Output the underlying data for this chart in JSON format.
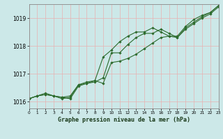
{
  "title": "Graphe pression niveau de la mer (hPa)",
  "bg_color": "#cce8e8",
  "grid_color": "#aad0d0",
  "line_color": "#2d6b2d",
  "xmin": 0,
  "xmax": 23,
  "ymin": 1015.75,
  "ymax": 1019.5,
  "yticks": [
    1016,
    1017,
    1018,
    1019
  ],
  "xticks": [
    0,
    1,
    2,
    3,
    4,
    5,
    6,
    7,
    8,
    9,
    10,
    11,
    12,
    13,
    14,
    15,
    16,
    17,
    18,
    19,
    20,
    21,
    22,
    23
  ],
  "series": [
    [
      1016.1,
      1016.2,
      1016.25,
      1016.2,
      1016.15,
      1016.1,
      1016.55,
      1016.65,
      1016.7,
      1016.85,
      1017.75,
      1017.75,
      1018.05,
      1018.3,
      1018.45,
      1018.45,
      1018.6,
      1018.45,
      1018.3,
      1018.6,
      1018.8,
      1019.0,
      1019.15,
      1019.4
    ],
    [
      1016.1,
      1016.2,
      1016.25,
      1016.2,
      1016.15,
      1016.2,
      1016.6,
      1016.7,
      1016.75,
      1017.6,
      1017.85,
      1018.15,
      1018.35,
      1018.5,
      1018.5,
      1018.65,
      1018.5,
      1018.35,
      1018.3,
      1018.65,
      1018.85,
      1019.05,
      1019.2,
      1019.45
    ],
    [
      1016.1,
      1016.2,
      1016.3,
      1016.2,
      1016.1,
      1016.15,
      1016.6,
      1016.65,
      1016.75,
      1016.65,
      1017.4,
      1017.45,
      1017.55,
      1017.7,
      1017.9,
      1018.1,
      1018.3,
      1018.35,
      1018.35,
      1018.7,
      1018.95,
      1019.1,
      1019.2,
      1019.45
    ]
  ],
  "ylabel_fontsize": 5.5,
  "xlabel_fontsize": 5.0,
  "title_fontsize": 6.0,
  "marker_size": 1.8,
  "linewidth": 0.8
}
